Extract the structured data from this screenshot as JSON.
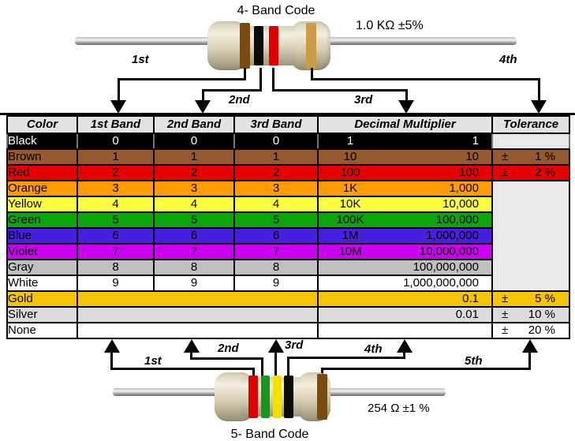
{
  "top_resistor": {
    "title": "4- Band Code",
    "value_label": "1.0 KΩ  ±5%",
    "bands": [
      {
        "name": "brown",
        "color": "#7b4a10"
      },
      {
        "name": "black",
        "color": "#0b0b0b"
      },
      {
        "name": "red",
        "color": "#df0000"
      },
      {
        "name": "gold",
        "color": "#cb9c48"
      }
    ],
    "pointers": [
      "1st",
      "2nd",
      "3rd",
      "4th"
    ]
  },
  "bottom_resistor": {
    "title": "5- Band Code",
    "value_label": "254 Ω  ±1 %",
    "bands": [
      {
        "name": "red",
        "color": "#df0000"
      },
      {
        "name": "green",
        "color": "#17961c"
      },
      {
        "name": "yellow",
        "color": "#efe202"
      },
      {
        "name": "black",
        "color": "#0b0b0b"
      },
      {
        "name": "brown",
        "color": "#7b4a10"
      }
    ],
    "pointers": [
      "1st",
      "2nd",
      "3rd",
      "4th",
      "5th"
    ]
  },
  "table": {
    "header_bg": "#e2e2e2",
    "empty_tolerance_bg": "#e9e9e9",
    "headers": [
      "Color",
      "1st Band",
      "2nd Band",
      "3rd Band",
      "Decimal Multiplier",
      "Tolerance"
    ],
    "rows": [
      {
        "color_name": "Black",
        "bg": "#000000",
        "fg": "#ffffff",
        "bands": [
          "0",
          "0",
          "0"
        ],
        "mult_short": "1",
        "mult_full": "1",
        "tolerance": null,
        "tol_cell": "empty"
      },
      {
        "color_name": "Brown",
        "bg": "#96582c",
        "fg": "#000000",
        "bands": [
          "1",
          "1",
          "1"
        ],
        "mult_short": "10",
        "mult_full": "10",
        "tolerance": {
          "sign": "±",
          "value": "1 %"
        },
        "tol_cell": "own"
      },
      {
        "color_name": "Red",
        "bg": "#e60000",
        "fg": "#000000",
        "bands": [
          "2",
          "2",
          "2"
        ],
        "mult_short": "100",
        "mult_full": "100",
        "tolerance": {
          "sign": "±",
          "value": "2 %"
        },
        "tol_cell": "own"
      },
      {
        "color_name": "Orange",
        "bg": "#ff9c04",
        "fg": "#000000",
        "bands": [
          "3",
          "3",
          "3"
        ],
        "mult_short": "1K",
        "mult_full": "1,000",
        "tolerance": null,
        "tol_cell": "merged-start"
      },
      {
        "color_name": "Yellow",
        "bg": "#ffff42",
        "fg": "#000000",
        "bands": [
          "4",
          "4",
          "4"
        ],
        "mult_short": "10K",
        "mult_full": "10,000",
        "tolerance": null,
        "tol_cell": "merged"
      },
      {
        "color_name": "Green",
        "bg": "#0ca60c",
        "fg": "#000000",
        "bands": [
          "5",
          "5",
          "5"
        ],
        "mult_short": "100K",
        "mult_full": "100,000",
        "tolerance": null,
        "tol_cell": "merged"
      },
      {
        "color_name": "Blue",
        "bg": "#4a1ede",
        "fg": "#000000",
        "bands": [
          "6",
          "6",
          "6"
        ],
        "mult_short": "1M",
        "mult_full": "1,000,000",
        "tolerance": null,
        "tol_cell": "merged"
      },
      {
        "color_name": "Violet",
        "bg": "#cb01f2",
        "fg": "#000000",
        "bands": [
          "7",
          "7",
          "7"
        ],
        "mult_short": "10M",
        "mult_full": "10,000,000",
        "tolerance": null,
        "tol_cell": "merged"
      },
      {
        "color_name": "Gray",
        "bg": "#bfbfbf",
        "fg": "#000000",
        "bands": [
          "8",
          "8",
          "8"
        ],
        "mult_short": "",
        "mult_full": "100,000,000",
        "tolerance": null,
        "tol_cell": "merged"
      },
      {
        "color_name": "White",
        "bg": "#ffffff",
        "fg": "#000000",
        "bands": [
          "9",
          "9",
          "9"
        ],
        "mult_short": "",
        "mult_full": "1,000,000,000",
        "tolerance": null,
        "tol_cell": "merged"
      },
      {
        "color_name": "Gold",
        "bg": "#f5c402",
        "fg": "#000000",
        "bands": null,
        "mult_short": "",
        "mult_full": "0.1",
        "tolerance": {
          "sign": "±",
          "value": "5 %"
        },
        "tol_cell": "own"
      },
      {
        "color_name": "Silver",
        "bg": "#dbdbdb",
        "fg": "#000000",
        "bands": null,
        "mult_short": "",
        "mult_full": "0.01",
        "tolerance": {
          "sign": "±",
          "value": "10 %"
        },
        "tol_cell": "own"
      },
      {
        "color_name": "None",
        "bg": "#ffffff",
        "fg": "#000000",
        "bands": null,
        "mult_short": "",
        "mult_full": "",
        "tolerance": {
          "sign": "±",
          "value": "20 %"
        },
        "tol_cell": "own"
      }
    ]
  }
}
